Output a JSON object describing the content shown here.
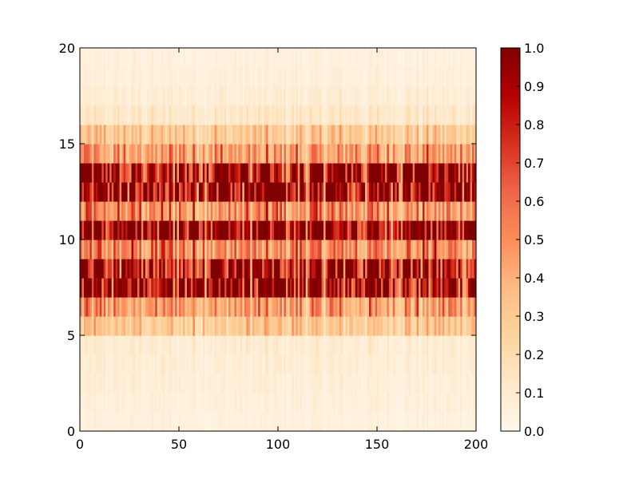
{
  "chart_data": {
    "type": "heatmap",
    "title": "",
    "xlabel": "",
    "ylabel": "",
    "xlim": [
      0,
      200
    ],
    "ylim": [
      0,
      20
    ],
    "x_ticks": [
      "0",
      "50",
      "100",
      "150",
      "200"
    ],
    "x_tick_values": [
      0,
      50,
      100,
      150,
      200
    ],
    "y_ticks": [
      "0",
      "5",
      "10",
      "15",
      "20"
    ],
    "y_tick_values": [
      0,
      5,
      10,
      15,
      20
    ],
    "grid": false,
    "colormap": "OrRd",
    "colorbar": {
      "range": [
        0.0,
        1.0
      ],
      "ticks": [
        "0.0",
        "0.1",
        "0.2",
        "0.3",
        "0.4",
        "0.5",
        "0.6",
        "0.7",
        "0.8",
        "0.9",
        "1.0"
      ],
      "tick_values": [
        0.0,
        0.1,
        0.2,
        0.3,
        0.4,
        0.5,
        0.6,
        0.7,
        0.8,
        0.9,
        1.0
      ],
      "colors": [
        "#fff7ec",
        "#fee8c8",
        "#fdd49e",
        "#fdbb84",
        "#fc8d59",
        "#ef6548",
        "#d7301f",
        "#b30000",
        "#7f0000"
      ]
    },
    "n_columns": 200,
    "n_rows": 20,
    "row_mean_intensity": [
      0.05,
      0.06,
      0.07,
      0.08,
      0.09,
      0.3,
      0.45,
      0.8,
      0.75,
      0.5,
      0.85,
      0.5,
      0.75,
      0.8,
      0.45,
      0.3,
      0.12,
      0.08,
      0.06,
      0.05
    ]
  }
}
